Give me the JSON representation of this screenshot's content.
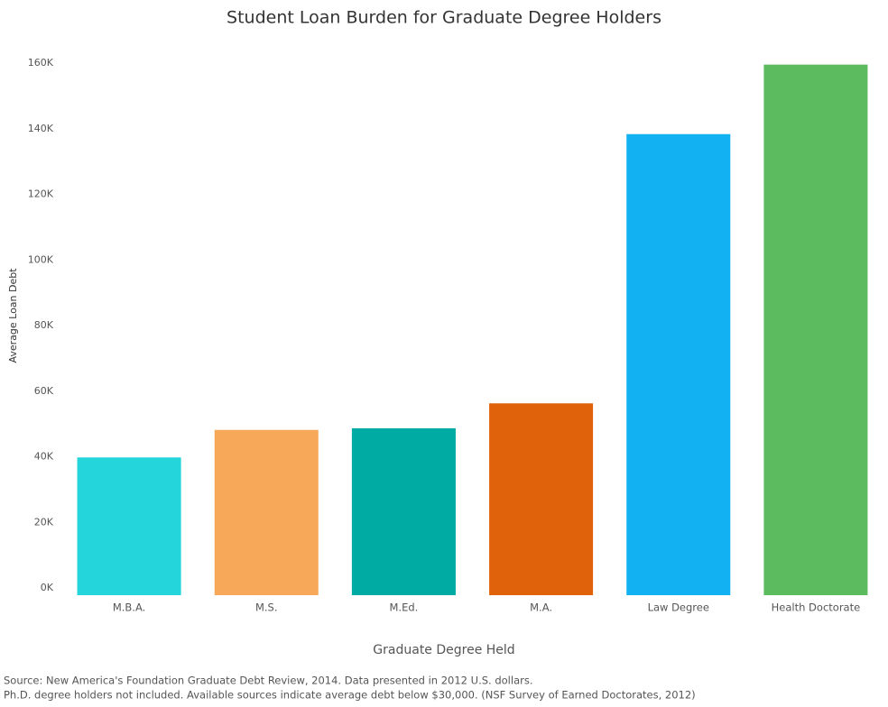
{
  "chart_data": {
    "type": "bar",
    "title": "Student Loan Burden for Graduate Degree Holders",
    "x_label": "Graduate Degree Held",
    "y_label": "Average Loan Debt",
    "categories": [
      "M.B.A.",
      "M.S.",
      "M.Ed.",
      "M.A.",
      "Law Degree",
      "Health Doctorate"
    ],
    "values": [
      42000,
      50400,
      50900,
      58500,
      140600,
      161800
    ],
    "colors": [
      "#24d5dc",
      "#f7a959",
      "#00aba4",
      "#e0620b",
      "#12b1f2",
      "#5cbb5f"
    ],
    "ylim": [
      0,
      165000
    ],
    "yticks": [
      {
        "value": 0,
        "label": "0K"
      },
      {
        "value": 20000,
        "label": "20K"
      },
      {
        "value": 40000,
        "label": "40K"
      },
      {
        "value": 60000,
        "label": "60K"
      },
      {
        "value": 80000,
        "label": "80K"
      },
      {
        "value": 100000,
        "label": "100K"
      },
      {
        "value": 120000,
        "label": "120K"
      },
      {
        "value": 140000,
        "label": "140K"
      },
      {
        "value": 160000,
        "label": "160K"
      }
    ],
    "grid": false,
    "notes": [
      "Source: New America's Foundation Graduate Debt Review, 2014. Data presented in 2012 U.S. dollars.",
      "Ph.D. degree holders not included. Available sources indicate average debt below $30,000. (NSF Survey of Earned Doctorates, 2012)"
    ]
  }
}
